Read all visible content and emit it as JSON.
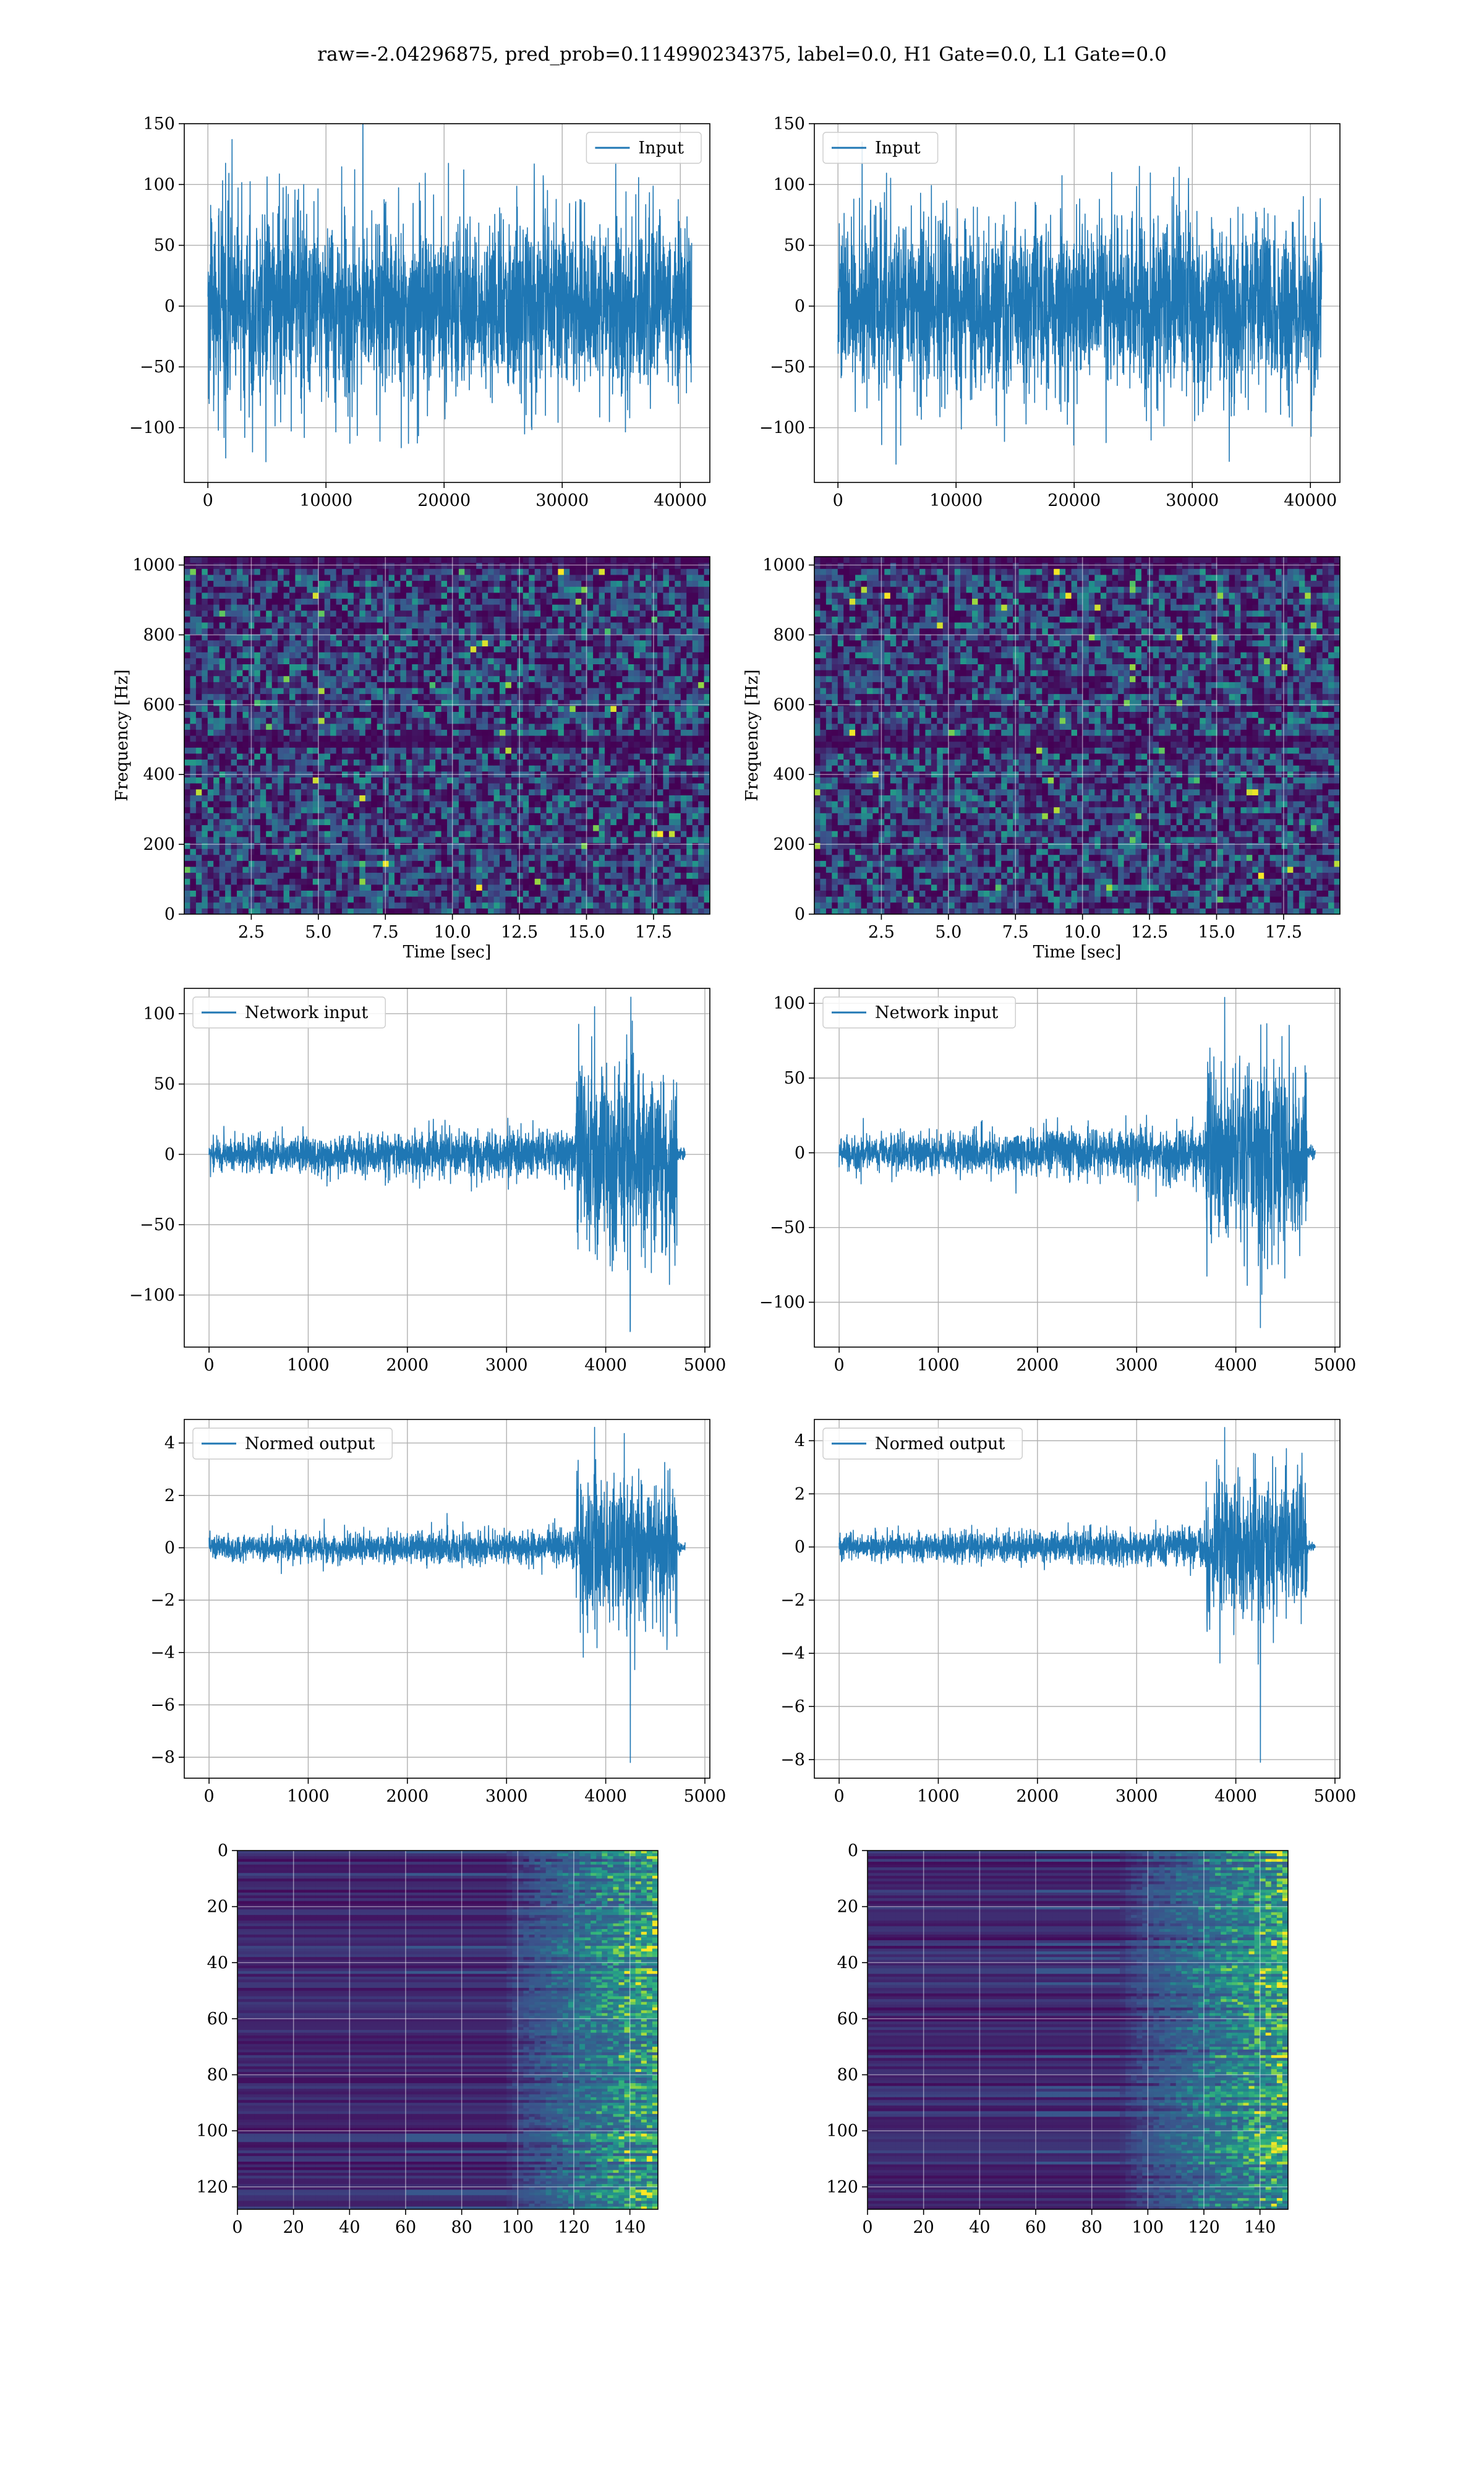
{
  "figure": {
    "title": "raw=-2.04296875, pred_prob=0.114990234375, label=0.0, H1 Gate=0.0, L1 Gate=0.0"
  },
  "colors": {
    "series": "#1f77b4",
    "heatmap_dark": "#440154",
    "heatmap_mid": "#31688e",
    "heatmap_teal": "#35b779",
    "heatmap_bright": "#fde725",
    "grid": "#b0b0b0"
  },
  "chart_data": [
    {
      "id": "h1-input",
      "type": "line",
      "legend": "Input",
      "legend_loc": "upper right",
      "grid": true,
      "xlim": [
        -2000,
        42500
      ],
      "ylim": [
        -145,
        150
      ],
      "xticks": [
        0,
        10000,
        20000,
        30000,
        40000
      ],
      "yticks": [
        -100,
        -50,
        0,
        50,
        100,
        150
      ],
      "xtick_labels": [
        "0",
        "10000",
        "20000",
        "30000",
        "40000"
      ],
      "ytick_labels": [
        "−100",
        "−50",
        "0",
        "50",
        "100",
        "150"
      ],
      "x_range": [
        0,
        40960
      ],
      "envelope": [
        -85,
        85
      ],
      "peak_max": 137,
      "peak_min": -128
    },
    {
      "id": "l1-input",
      "type": "line",
      "legend": "Input",
      "legend_loc": "upper left",
      "grid": true,
      "xlim": [
        -2000,
        42500
      ],
      "ylim": [
        -145,
        150
      ],
      "xticks": [
        0,
        10000,
        20000,
        30000,
        40000
      ],
      "yticks": [
        -100,
        -50,
        0,
        50,
        100,
        150
      ],
      "xtick_labels": [
        "0",
        "10000",
        "20000",
        "30000",
        "40000"
      ],
      "ytick_labels": [
        "−100",
        "−50",
        "0",
        "50",
        "100",
        "150"
      ],
      "x_range": [
        0,
        40960
      ],
      "envelope": [
        -80,
        80
      ],
      "peak_max": 135,
      "peak_min": -130
    },
    {
      "id": "h1-spectrogram",
      "type": "heatmap",
      "xlabel": "Time [sec]",
      "ylabel": "Frequency [Hz]",
      "grid": true,
      "xlim": [
        0,
        19.6
      ],
      "ylim": [
        0,
        1024
      ],
      "xticks": [
        2.5,
        5.0,
        7.5,
        10.0,
        12.5,
        15.0,
        17.5
      ],
      "yticks": [
        0,
        200,
        400,
        600,
        800,
        1000
      ],
      "xtick_labels": [
        "2.5",
        "5.0",
        "7.5",
        "10.0",
        "12.5",
        "15.0",
        "17.5"
      ],
      "ytick_labels": [
        "0",
        "200",
        "400",
        "600",
        "800",
        "1000"
      ],
      "dark_bands_hz": [
        490,
        1010
      ]
    },
    {
      "id": "l1-spectrogram",
      "type": "heatmap",
      "xlabel": "Time [sec]",
      "ylabel": "Frequency [Hz]",
      "grid": true,
      "xlim": [
        0,
        19.6
      ],
      "ylim": [
        0,
        1024
      ],
      "xticks": [
        2.5,
        5.0,
        7.5,
        10.0,
        12.5,
        15.0,
        17.5
      ],
      "yticks": [
        0,
        200,
        400,
        600,
        800,
        1000
      ],
      "xtick_labels": [
        "2.5",
        "5.0",
        "7.5",
        "10.0",
        "12.5",
        "15.0",
        "17.5"
      ],
      "ytick_labels": [
        "0",
        "200",
        "400",
        "600",
        "800",
        "1000"
      ],
      "dark_bands_hz": [
        490,
        1010
      ]
    },
    {
      "id": "h1-network-input",
      "type": "line",
      "legend": "Network input",
      "legend_loc": "upper left",
      "grid": true,
      "xlim": [
        -250,
        5050
      ],
      "ylim": [
        -137,
        118
      ],
      "xticks": [
        0,
        1000,
        2000,
        3000,
        4000,
        5000
      ],
      "yticks": [
        -100,
        -50,
        0,
        50,
        100
      ],
      "xtick_labels": [
        "0",
        "1000",
        "2000",
        "3000",
        "4000",
        "5000"
      ],
      "ytick_labels": [
        "−100",
        "−50",
        "0",
        "50",
        "100"
      ],
      "x_range": [
        0,
        4800
      ],
      "burst_start": 3700,
      "burst_end": 4720,
      "base_amp": 15,
      "burst_amp": 60,
      "peak_max": 105,
      "peak_min": -125
    },
    {
      "id": "l1-network-input",
      "type": "line",
      "legend": "Network input",
      "legend_loc": "upper left",
      "grid": true,
      "xlim": [
        -250,
        5050
      ],
      "ylim": [
        -130,
        110
      ],
      "xticks": [
        0,
        1000,
        2000,
        3000,
        4000,
        5000
      ],
      "yticks": [
        -100,
        -50,
        0,
        50,
        100
      ],
      "xtick_labels": [
        "0",
        "1000",
        "2000",
        "3000",
        "4000",
        "5000"
      ],
      "ytick_labels": [
        "−100",
        "−50",
        "0",
        "50",
        "100"
      ],
      "x_range": [
        0,
        4800
      ],
      "burst_start": 3700,
      "burst_end": 4720,
      "base_amp": 15,
      "burst_amp": 55,
      "peak_max": 104,
      "peak_min": -117
    },
    {
      "id": "h1-normed-output",
      "type": "line",
      "legend": "Normed output",
      "legend_loc": "upper left",
      "grid": true,
      "xlim": [
        -250,
        5050
      ],
      "ylim": [
        -8.8,
        4.9
      ],
      "xticks": [
        0,
        1000,
        2000,
        3000,
        4000,
        5000
      ],
      "yticks": [
        -8,
        -6,
        -4,
        -2,
        0,
        2,
        4
      ],
      "xtick_labels": [
        "0",
        "1000",
        "2000",
        "3000",
        "4000",
        "5000"
      ],
      "ytick_labels": [
        "−8",
        "−6",
        "−4",
        "−2",
        "0",
        "2",
        "4"
      ],
      "x_range": [
        0,
        4800
      ],
      "burst_start": 3700,
      "burst_end": 4720,
      "base_amp": 0.6,
      "burst_amp": 2.4,
      "peak_max": 4.6,
      "peak_min": -8.2
    },
    {
      "id": "l1-normed-output",
      "type": "line",
      "legend": "Normed output",
      "legend_loc": "upper left",
      "grid": true,
      "xlim": [
        -250,
        5050
      ],
      "ylim": [
        -8.7,
        4.8
      ],
      "xticks": [
        0,
        1000,
        2000,
        3000,
        4000,
        5000
      ],
      "yticks": [
        -8,
        -6,
        -4,
        -2,
        0,
        2,
        4
      ],
      "xtick_labels": [
        "0",
        "1000",
        "2000",
        "3000",
        "4000",
        "5000"
      ],
      "ytick_labels": [
        "−8",
        "−6",
        "−4",
        "−2",
        "0",
        "2",
        "4"
      ],
      "x_range": [
        0,
        4800
      ],
      "burst_start": 3700,
      "burst_end": 4720,
      "base_amp": 0.6,
      "burst_amp": 2.4,
      "peak_max": 4.5,
      "peak_min": -8.1
    },
    {
      "id": "h1-feature-map",
      "type": "heatmap",
      "inverted_y": true,
      "grid": true,
      "xlim": [
        0,
        150
      ],
      "ylim": [
        128,
        0
      ],
      "xticks": [
        0,
        20,
        40,
        60,
        80,
        100,
        120,
        140
      ],
      "yticks": [
        0,
        20,
        40,
        60,
        80,
        100,
        120
      ],
      "xtick_labels": [
        "0",
        "20",
        "40",
        "60",
        "80",
        "100",
        "120",
        "140"
      ],
      "ytick_labels": [
        "0",
        "20",
        "40",
        "60",
        "80",
        "100",
        "120"
      ],
      "activity_onset": 95
    },
    {
      "id": "l1-feature-map",
      "type": "heatmap",
      "inverted_y": true,
      "grid": true,
      "xlim": [
        0,
        150
      ],
      "ylim": [
        128,
        0
      ],
      "xticks": [
        0,
        20,
        40,
        60,
        80,
        100,
        120,
        140
      ],
      "yticks": [
        0,
        20,
        40,
        60,
        80,
        100,
        120
      ],
      "xtick_labels": [
        "0",
        "20",
        "40",
        "60",
        "80",
        "100",
        "120",
        "140"
      ],
      "ytick_labels": [
        "0",
        "20",
        "40",
        "60",
        "80",
        "100",
        "120"
      ],
      "activity_onset": 90
    }
  ]
}
